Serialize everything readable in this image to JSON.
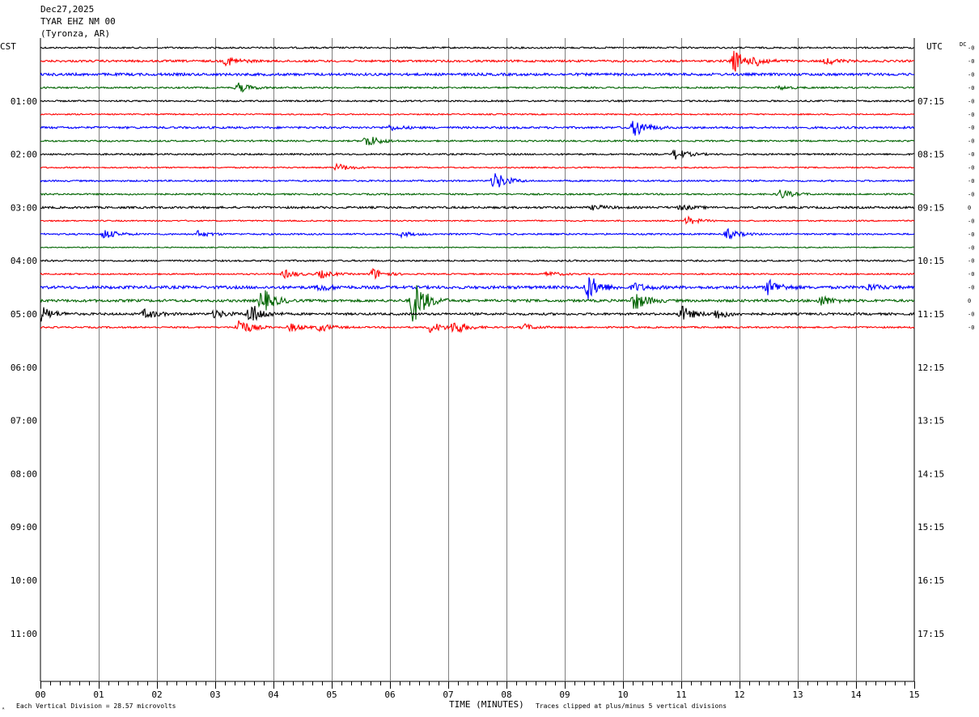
{
  "header": {
    "date": "Dec27,2025",
    "station": "TYAR EHZ NM 00",
    "location": "(Tyronza, AR)"
  },
  "left_zone": "CST",
  "right_zone": "UTC",
  "dc_label": "DC",
  "offset_marks": [
    "-0",
    "-0",
    "-0",
    "-0",
    "-0",
    "-0",
    "-0",
    "-0",
    "-0",
    "-0",
    "-0",
    "-0",
    "0",
    "-0",
    "-0",
    "-0",
    "-0",
    "-0",
    "-0",
    "0",
    "-0",
    "-0"
  ],
  "colors": {
    "trace_cycle": [
      "#000000",
      "#ff0000",
      "#0000ff",
      "#006400"
    ],
    "grid": "#808080"
  },
  "footer": {
    "scale_note": "Each Vertical Division =   28.57 microvolts",
    "xlabel": "TIME (MINUTES)",
    "clip_note": "Traces clipped at plus/minus 5 vertical divisions",
    "corner_mark": "ᴬ"
  },
  "chart_data": {
    "type": "line",
    "title": "TYAR EHZ NM 00",
    "xlabel": "TIME (MINUTES)",
    "x_ticks": [
      "00",
      "01",
      "02",
      "03",
      "04",
      "05",
      "06",
      "07",
      "08",
      "09",
      "10",
      "11",
      "12",
      "13",
      "14",
      "15"
    ],
    "xlim": [
      0,
      15
    ],
    "left_hour_labels": [
      "01:00",
      "02:00",
      "03:00",
      "04:00",
      "05:00",
      "06:00",
      "07:00",
      "08:00",
      "09:00",
      "10:00",
      "11:00"
    ],
    "right_hour_labels": [
      "07:15",
      "08:15",
      "09:15",
      "10:15",
      "11:15",
      "12:15",
      "13:15",
      "14:15",
      "15:15",
      "16:15",
      "17:15"
    ],
    "rows_per_hour": 4,
    "trace_rows": [
      {
        "row": 0,
        "noise": 1.0,
        "events": []
      },
      {
        "row": 1,
        "noise": 1.3,
        "events": [
          [
            3.2,
            6
          ],
          [
            11.9,
            14
          ],
          [
            12.3,
            5
          ],
          [
            13.5,
            4
          ]
        ]
      },
      {
        "row": 2,
        "noise": 1.6,
        "events": []
      },
      {
        "row": 3,
        "noise": 1.0,
        "events": [
          [
            3.4,
            6
          ],
          [
            12.7,
            2
          ]
        ]
      },
      {
        "row": 4,
        "noise": 1.0,
        "events": []
      },
      {
        "row": 5,
        "noise": 0.8,
        "events": []
      },
      {
        "row": 6,
        "noise": 1.3,
        "events": [
          [
            6.0,
            3
          ],
          [
            10.2,
            12
          ]
        ]
      },
      {
        "row": 7,
        "noise": 1.0,
        "events": [
          [
            5.6,
            8
          ]
        ]
      },
      {
        "row": 8,
        "noise": 1.0,
        "events": [
          [
            10.9,
            7
          ]
        ]
      },
      {
        "row": 9,
        "noise": 0.8,
        "events": [
          [
            5.1,
            5
          ]
        ]
      },
      {
        "row": 10,
        "noise": 1.0,
        "events": [
          [
            7.8,
            12
          ]
        ]
      },
      {
        "row": 11,
        "noise": 1.0,
        "events": [
          [
            12.7,
            6
          ]
        ]
      },
      {
        "row": 12,
        "noise": 1.3,
        "events": [
          [
            9.5,
            3
          ],
          [
            11.0,
            3
          ]
        ]
      },
      {
        "row": 13,
        "noise": 0.8,
        "events": [
          [
            11.1,
            5
          ]
        ]
      },
      {
        "row": 14,
        "noise": 1.0,
        "events": [
          [
            1.1,
            6
          ],
          [
            2.7,
            4
          ],
          [
            6.2,
            3
          ],
          [
            11.8,
            6
          ]
        ]
      },
      {
        "row": 15,
        "noise": 0.6,
        "events": []
      },
      {
        "row": 16,
        "noise": 1.0,
        "events": []
      },
      {
        "row": 17,
        "noise": 0.9,
        "events": [
          [
            4.2,
            5
          ],
          [
            4.8,
            5
          ],
          [
            5.7,
            7
          ],
          [
            8.7,
            3
          ]
        ]
      },
      {
        "row": 18,
        "noise": 1.8,
        "events": [
          [
            4.8,
            4
          ],
          [
            9.4,
            16
          ],
          [
            10.2,
            5
          ],
          [
            12.5,
            10
          ],
          [
            14.2,
            4
          ]
        ]
      },
      {
        "row": 19,
        "noise": 1.6,
        "events": [
          [
            3.8,
            16
          ],
          [
            6.4,
            30
          ],
          [
            10.2,
            12
          ],
          [
            13.4,
            6
          ]
        ]
      },
      {
        "row": 20,
        "noise": 1.4,
        "events": [
          [
            0.0,
            10
          ],
          [
            1.8,
            6
          ],
          [
            3.0,
            5
          ],
          [
            3.6,
            14
          ],
          [
            11.0,
            10
          ],
          [
            11.6,
            6
          ]
        ]
      },
      {
        "row": 21,
        "noise": 1.0,
        "events": [
          [
            3.4,
            12
          ],
          [
            4.3,
            5
          ],
          [
            4.8,
            5
          ],
          [
            6.7,
            7
          ],
          [
            7.1,
            9
          ],
          [
            8.3,
            4
          ]
        ]
      }
    ]
  }
}
